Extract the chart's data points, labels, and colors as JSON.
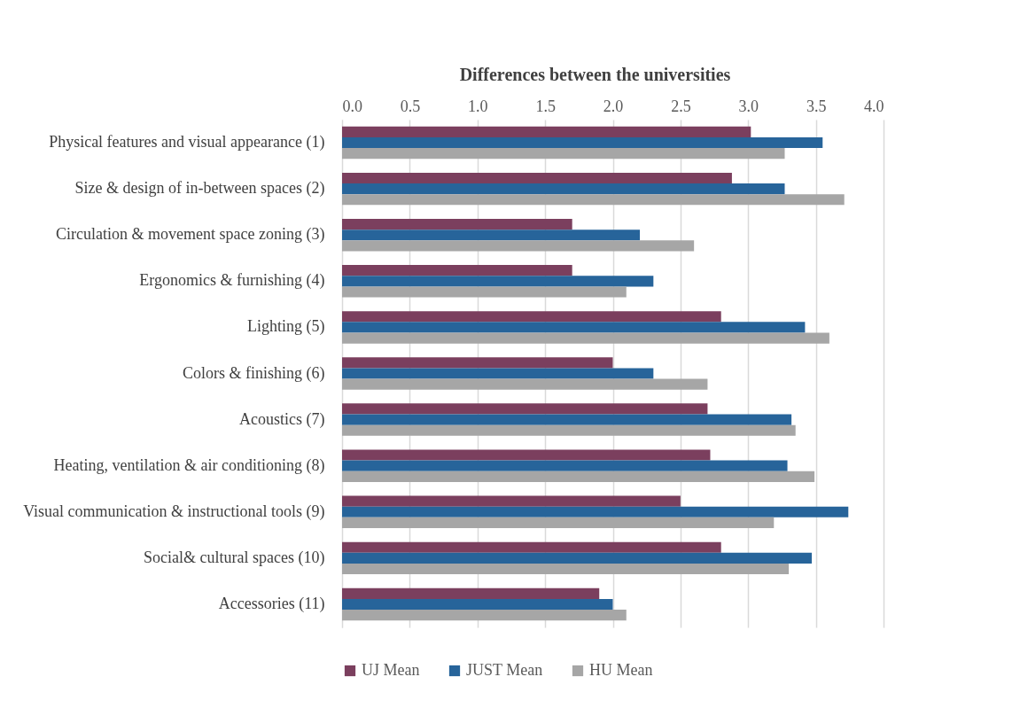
{
  "chart_data": {
    "type": "bar",
    "orientation": "horizontal",
    "title": "Differences between the universities",
    "categories": [
      "Physical features and visual appearance (1)",
      "Size & design of in-between spaces (2)",
      "Circulation & movement space zoning (3)",
      "Ergonomics & furnishing (4)",
      "Lighting (5)",
      "Colors & finishing  (6)",
      "Acoustics (7)",
      "Heating, ventilation & air conditioning  (8)",
      "Visual communication & instructional tools (9)",
      "Social& cultural spaces (10)",
      "Accessories (11)"
    ],
    "series": [
      {
        "name": "UJ Mean",
        "color": "#7b3f5e",
        "values": [
          3.02,
          2.88,
          1.7,
          1.7,
          2.8,
          2.0,
          2.7,
          2.72,
          2.5,
          2.8,
          1.9
        ]
      },
      {
        "name": "JUST Mean",
        "color": "#27649a",
        "values": [
          3.55,
          3.27,
          2.2,
          2.3,
          3.42,
          2.3,
          3.32,
          3.29,
          3.74,
          3.47,
          2.0
        ]
      },
      {
        "name": "HU Mean",
        "color": "#a6a6a6",
        "values": [
          3.27,
          3.71,
          2.6,
          2.1,
          3.6,
          2.7,
          3.35,
          3.49,
          3.19,
          3.3,
          2.1
        ]
      }
    ],
    "xlim": [
      0,
      4
    ],
    "xticks": [
      {
        "value": 0,
        "label": "0.0"
      },
      {
        "value": 0.5,
        "label": "0.5"
      },
      {
        "value": 1,
        "label": "1.0"
      },
      {
        "value": 1.5,
        "label": "1.5"
      },
      {
        "value": 2,
        "label": "2.0"
      },
      {
        "value": 2.5,
        "label": "2.5"
      },
      {
        "value": 3,
        "label": "3.0"
      },
      {
        "value": 3.5,
        "label": "3.5"
      },
      {
        "value": 4,
        "label": "4.0"
      }
    ],
    "grid": "x",
    "legend": "bottom"
  }
}
